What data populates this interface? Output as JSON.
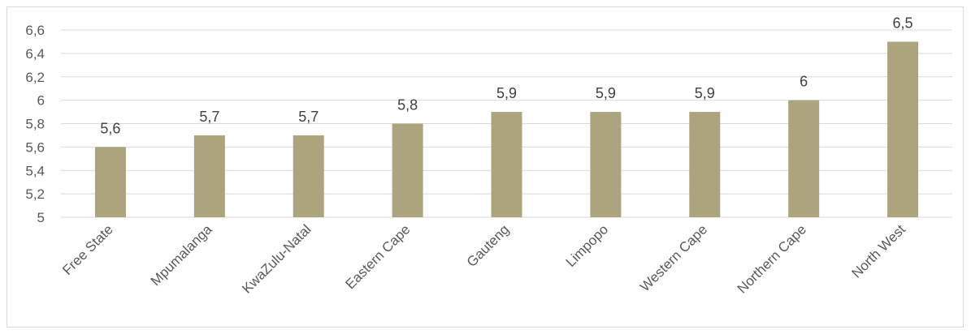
{
  "chart_data": {
    "type": "bar",
    "title": "",
    "xlabel": "",
    "ylabel": "",
    "categories": [
      "Free State",
      "Mpumalanga",
      "KwaZulu-Natal",
      "Eastern Cape",
      "Gauteng",
      "Limpopo",
      "Western Cape",
      "Northern Cape",
      "North West"
    ],
    "values": [
      5.6,
      5.7,
      5.7,
      5.8,
      5.9,
      5.9,
      5.9,
      6,
      6.5
    ],
    "value_labels": [
      "5,6",
      "5,7",
      "5,7",
      "5,8",
      "5,9",
      "5,9",
      "5,9",
      "6",
      "6,5"
    ],
    "ylim": [
      5,
      6.6
    ],
    "yticks": [
      5,
      5.2,
      5.4,
      5.6,
      5.8,
      6,
      6.2,
      6.4,
      6.6
    ],
    "ytick_labels": [
      "5",
      "5,2",
      "5,4",
      "5,6",
      "5,8",
      "6",
      "6,2",
      "6,4",
      "6,6"
    ],
    "grid": true,
    "legend": "none",
    "bar_color": "#aba47d",
    "gridline_color": "#d9d9d9"
  }
}
